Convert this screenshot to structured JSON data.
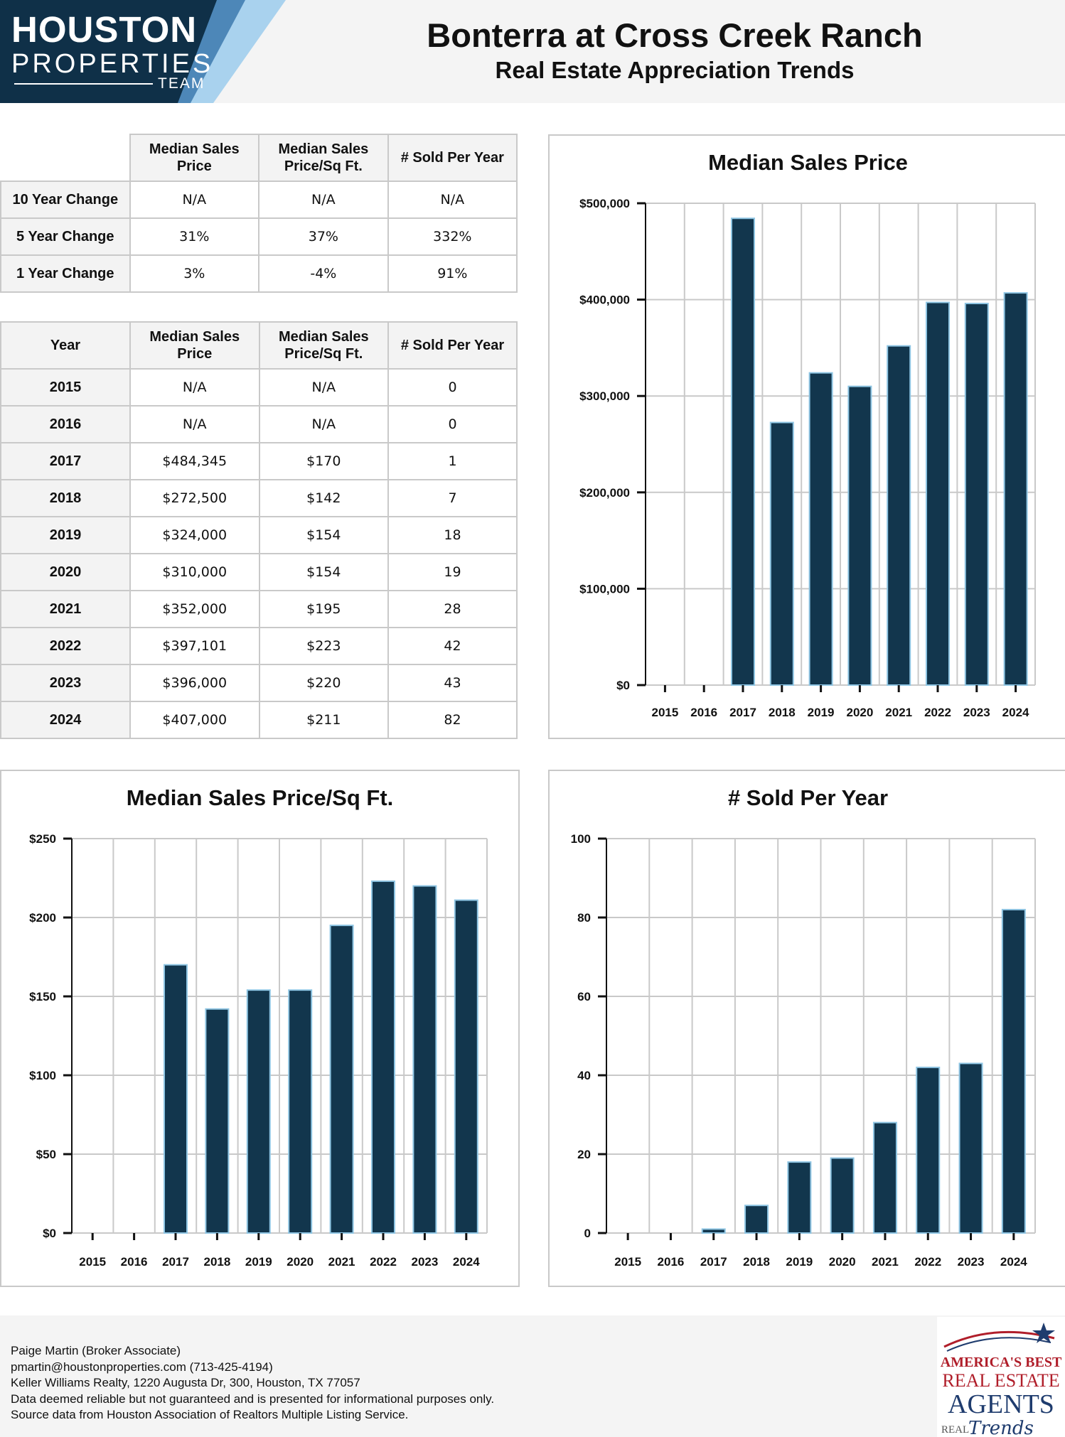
{
  "header": {
    "logo": {
      "line1": "HOUSTON",
      "line2": "PROPERTIES",
      "line3": "TEAM"
    },
    "title": "Bonterra at Cross Creek Ranch",
    "subtitle": "Real Estate Appreciation Trends"
  },
  "colors": {
    "bar": "#12364d",
    "bar_edge": "#8ec5e3",
    "logo_dark": "#0f3048",
    "logo_light": "#a9d2ee",
    "grid": "#c9c9c9"
  },
  "change_table": {
    "headers": [
      "",
      "Median Sales Price",
      "Median Sales Price/Sq Ft.",
      "# Sold Per Year"
    ],
    "rows": [
      {
        "label": "10 Year Change",
        "price": "N/A",
        "sqft": "N/A",
        "sold": "N/A"
      },
      {
        "label": "5 Year Change",
        "price": "31%",
        "sqft": "37%",
        "sold": "332%"
      },
      {
        "label": "1 Year Change",
        "price": "3%",
        "sqft": "-4%",
        "sold": "91%"
      }
    ]
  },
  "year_table": {
    "headers": [
      "Year",
      "Median Sales Price",
      "Median Sales Price/Sq Ft.",
      "# Sold Per Year"
    ],
    "rows": [
      {
        "year": "2015",
        "price": "N/A",
        "sqft": "N/A",
        "sold": "0"
      },
      {
        "year": "2016",
        "price": "N/A",
        "sqft": "N/A",
        "sold": "0"
      },
      {
        "year": "2017",
        "price": "$484,345",
        "sqft": "$170",
        "sold": "1"
      },
      {
        "year": "2018",
        "price": "$272,500",
        "sqft": "$142",
        "sold": "7"
      },
      {
        "year": "2019",
        "price": "$324,000",
        "sqft": "$154",
        "sold": "18"
      },
      {
        "year": "2020",
        "price": "$310,000",
        "sqft": "$154",
        "sold": "19"
      },
      {
        "year": "2021",
        "price": "$352,000",
        "sqft": "$195",
        "sold": "28"
      },
      {
        "year": "2022",
        "price": "$397,101",
        "sqft": "$223",
        "sold": "42"
      },
      {
        "year": "2023",
        "price": "$396,000",
        "sqft": "$220",
        "sold": "43"
      },
      {
        "year": "2024",
        "price": "$407,000",
        "sqft": "$211",
        "sold": "82"
      }
    ]
  },
  "chart_data": [
    {
      "type": "bar",
      "title": "Median Sales Price",
      "categories": [
        "2015",
        "2016",
        "2017",
        "2018",
        "2019",
        "2020",
        "2021",
        "2022",
        "2023",
        "2024"
      ],
      "values": [
        0,
        0,
        484345,
        272500,
        324000,
        310000,
        352000,
        397101,
        396000,
        407000
      ],
      "yticks": [
        "$0",
        "$100,000",
        "$200,000",
        "$300,000",
        "$400,000",
        "$500,000"
      ],
      "ylim": [
        0,
        500000
      ],
      "grid": true
    },
    {
      "type": "bar",
      "title": "Median Sales Price/Sq Ft.",
      "categories": [
        "2015",
        "2016",
        "2017",
        "2018",
        "2019",
        "2020",
        "2021",
        "2022",
        "2023",
        "2024"
      ],
      "values": [
        0,
        0,
        170,
        142,
        154,
        154,
        195,
        223,
        220,
        211
      ],
      "yticks": [
        "$0",
        "$50",
        "$100",
        "$150",
        "$200",
        "$250"
      ],
      "ylim": [
        0,
        250
      ],
      "grid": true
    },
    {
      "type": "bar",
      "title": "# Sold Per Year",
      "categories": [
        "2015",
        "2016",
        "2017",
        "2018",
        "2019",
        "2020",
        "2021",
        "2022",
        "2023",
        "2024"
      ],
      "values": [
        0,
        0,
        1,
        7,
        18,
        19,
        28,
        42,
        43,
        82
      ],
      "yticks": [
        "0",
        "20",
        "40",
        "60",
        "80",
        "100"
      ],
      "ylim": [
        0,
        100
      ],
      "grid": true
    }
  ],
  "footer": {
    "lines": [
      "Paige Martin (Broker Associate)",
      "pmartin@houstonproperties.com (713-425-4194)",
      "Keller Williams Realty, 1220 Augusta Dr, 300, Houston, TX 77057",
      "Data deemed reliable but not guaranteed and is presented for informational purposes only.",
      "Source data from Houston Association of Realtors Multiple Listing Service."
    ],
    "badge": {
      "line1": "AMERICA'S BEST",
      "line2": "REAL ESTATE",
      "line3": "AGENTS",
      "line4": "REAL",
      "line5": "Trends"
    }
  }
}
